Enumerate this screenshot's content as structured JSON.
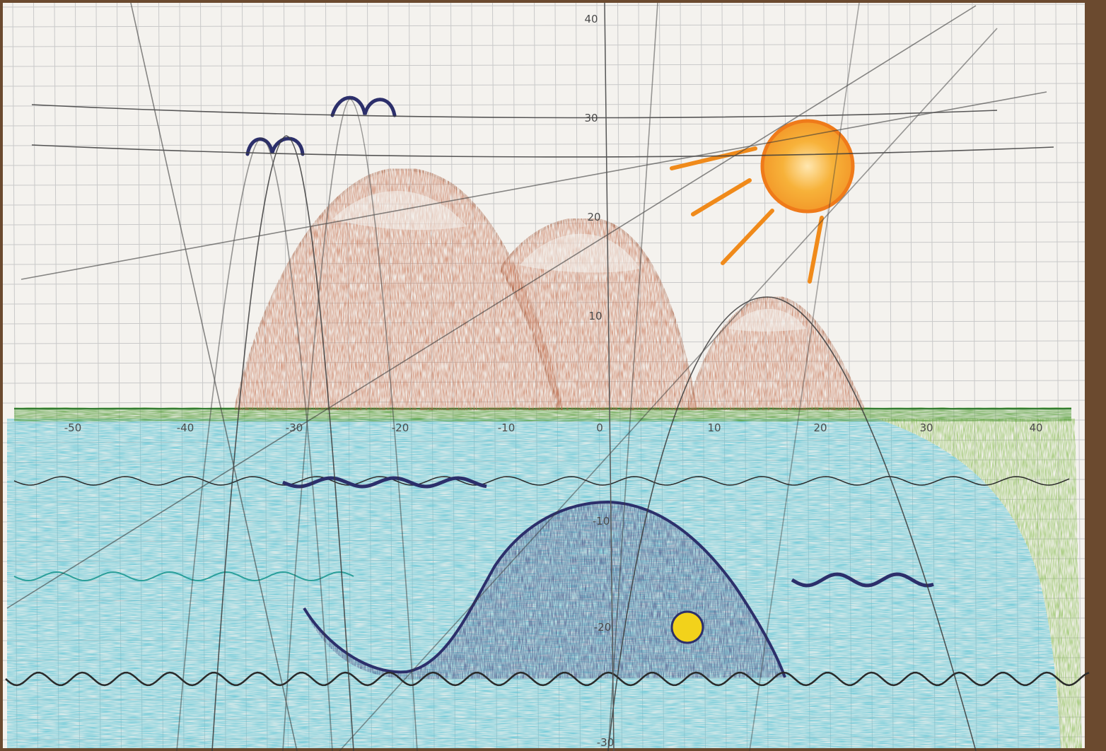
{
  "axes": {
    "x_ticks": [
      "-50",
      "-40",
      "-30",
      "-20",
      "-10",
      "0",
      "10",
      "20",
      "30",
      "40"
    ],
    "y_ticks": [
      "40",
      "30",
      "20",
      "10",
      "-10",
      "-20",
      "-30"
    ]
  },
  "colors": {
    "paper": "#f4f2ee",
    "grid": "#c9c9c9",
    "pencil_line": "#3a3a3a",
    "mountain_fill": "#c8795a",
    "mountain_stroke": "#a65a3a",
    "water": "#63c6d6",
    "grass": "#5da243",
    "grass_light": "#8cbf58",
    "whale": "#4f5487",
    "sun_core": "#f7b23a",
    "sun_ring": "#ef7a1a",
    "sun_ray": "#f08a1a",
    "eye": "#f2d21b",
    "bird": "#2c2f6b"
  },
  "scene": {
    "mountains": 3,
    "birds": 2,
    "sun_rays": 4
  }
}
